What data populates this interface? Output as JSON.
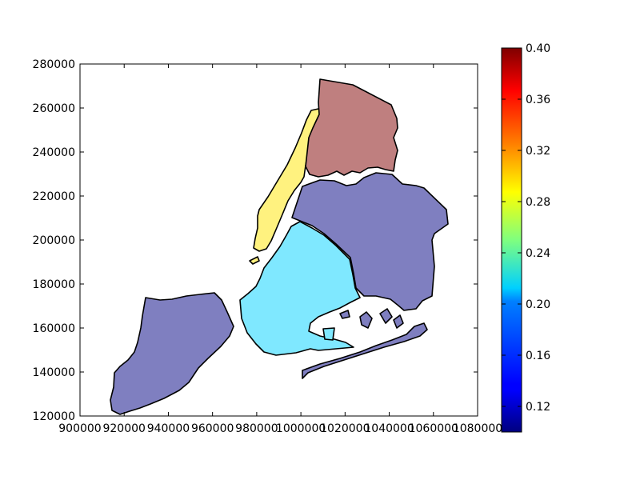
{
  "chart_data": {
    "type": "choropleth",
    "title": "",
    "xlabel": "",
    "ylabel": "",
    "xlim": [
      900000,
      1080000
    ],
    "ylim": [
      120000,
      280000
    ],
    "x_ticks": [
      900000,
      920000,
      940000,
      960000,
      980000,
      1000000,
      1020000,
      1040000,
      1060000,
      1080000
    ],
    "y_ticks": [
      120000,
      140000,
      160000,
      180000,
      200000,
      220000,
      240000,
      260000,
      280000
    ],
    "grid": false,
    "colormap": "jet",
    "colorbar": {
      "range": [
        0.1,
        0.4
      ],
      "ticks": [
        "0.12",
        "0.16",
        "0.20",
        "0.24",
        "0.28",
        "0.32",
        "0.36",
        "0.40"
      ],
      "tick_values": [
        0.12,
        0.16,
        0.2,
        0.24,
        0.28,
        0.32,
        0.36,
        0.4
      ]
    },
    "regions": [
      {
        "color": "#fff27f"
      },
      {
        "color": "#bf7f7f"
      },
      {
        "color": "#7f7fc0"
      },
      {
        "color": "#7fe8ff"
      },
      {
        "color": "#7f7fc0"
      }
    ]
  }
}
